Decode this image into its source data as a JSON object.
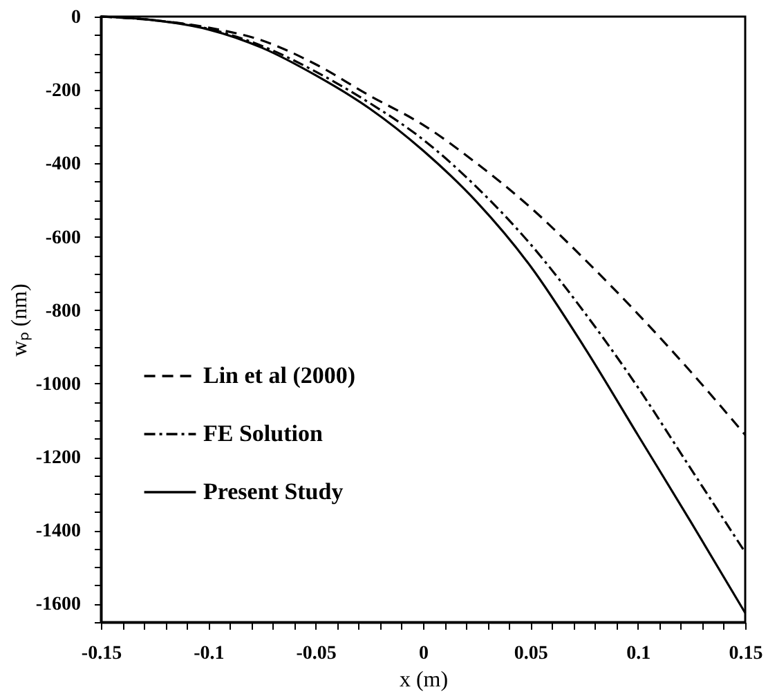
{
  "chart_data": {
    "type": "line",
    "xlabel": "x (m)",
    "ylabel": "wₚ (nm)",
    "xlim": [
      -0.15,
      0.15
    ],
    "ylim": [
      -1650,
      0
    ],
    "xticks": [
      -0.15,
      {
        "value": -0.14,
        "label": null
      },
      {
        "value": -0.13,
        "label": null
      },
      {
        "value": -0.12,
        "label": null
      },
      {
        "value": -0.11,
        "label": null
      },
      -0.1,
      {
        "value": -0.09,
        "label": null
      },
      {
        "value": -0.08,
        "label": null
      },
      {
        "value": -0.07,
        "label": null
      },
      {
        "value": -0.06,
        "label": null
      },
      -0.05,
      {
        "value": -0.04,
        "label": null
      },
      {
        "value": -0.03,
        "label": null
      },
      {
        "value": -0.02,
        "label": null
      },
      {
        "value": -0.01,
        "label": null
      },
      0,
      {
        "value": 0.01,
        "label": null
      },
      {
        "value": 0.02,
        "label": null
      },
      {
        "value": 0.03,
        "label": null
      },
      {
        "value": 0.04,
        "label": null
      },
      0.05,
      {
        "value": 0.06,
        "label": null
      },
      {
        "value": 0.07,
        "label": null
      },
      {
        "value": 0.08,
        "label": null
      },
      {
        "value": 0.09,
        "label": null
      },
      0.1,
      {
        "value": 0.11,
        "label": null
      },
      {
        "value": 0.12,
        "label": null
      },
      {
        "value": 0.13,
        "label": null
      },
      {
        "value": 0.14,
        "label": null
      },
      0.15
    ],
    "yticks": [
      {
        "value": -1650,
        "label": null
      },
      -1600,
      {
        "value": -1550,
        "label": null
      },
      {
        "value": -1500,
        "label": null
      },
      {
        "value": -1450,
        "label": null
      },
      -1400,
      {
        "value": -1350,
        "label": null
      },
      {
        "value": -1300,
        "label": null
      },
      {
        "value": -1250,
        "label": null
      },
      -1200,
      {
        "value": -1150,
        "label": null
      },
      {
        "value": -1100,
        "label": null
      },
      {
        "value": -1050,
        "label": null
      },
      -1000,
      {
        "value": -950,
        "label": null
      },
      {
        "value": -900,
        "label": null
      },
      {
        "value": -850,
        "label": null
      },
      -800,
      {
        "value": -750,
        "label": null
      },
      {
        "value": -700,
        "label": null
      },
      {
        "value": -650,
        "label": null
      },
      -600,
      {
        "value": -550,
        "label": null
      },
      {
        "value": -500,
        "label": null
      },
      {
        "value": -450,
        "label": null
      },
      -400,
      {
        "value": -350,
        "label": null
      },
      {
        "value": -300,
        "label": null
      },
      {
        "value": -250,
        "label": null
      },
      -200,
      {
        "value": -150,
        "label": null
      },
      {
        "value": -100,
        "label": null
      },
      {
        "value": -50,
        "label": null
      },
      0
    ],
    "grid": false,
    "legend": "bottom left",
    "marker": "none",
    "series": [
      {
        "name": "Lin et al (2000)",
        "color": "#000000",
        "line_style": "dashed",
        "x": [
          -0.15,
          -0.125,
          -0.1,
          -0.075,
          -0.05,
          -0.025,
          0,
          0.025,
          0.05,
          0.075,
          0.1,
          0.125,
          0.15
        ],
        "values": [
          0,
          -10,
          -30,
          -65,
          -130,
          -215,
          -295,
          -400,
          -520,
          -660,
          -810,
          -970,
          -1140
        ]
      },
      {
        "name": "FE Solution",
        "color": "#000000",
        "line_style": "dashdot",
        "x": [
          -0.15,
          -0.125,
          -0.1,
          -0.075,
          -0.05,
          -0.025,
          0,
          0.025,
          0.05,
          0.075,
          0.1,
          0.125,
          0.15
        ],
        "values": [
          0,
          -10,
          -33,
          -80,
          -150,
          -235,
          -335,
          -465,
          -620,
          -805,
          -1010,
          -1235,
          -1460
        ]
      },
      {
        "name": "Present Study",
        "color": "#000000",
        "line_style": "solid",
        "x": [
          -0.15,
          -0.125,
          -0.1,
          -0.075,
          -0.05,
          -0.025,
          0,
          0.025,
          0.05,
          0.075,
          0.1,
          0.125,
          0.15
        ],
        "values": [
          0,
          -10,
          -35,
          -85,
          -160,
          -250,
          -365,
          -505,
          -680,
          -900,
          -1140,
          -1380,
          -1625
        ]
      }
    ]
  }
}
